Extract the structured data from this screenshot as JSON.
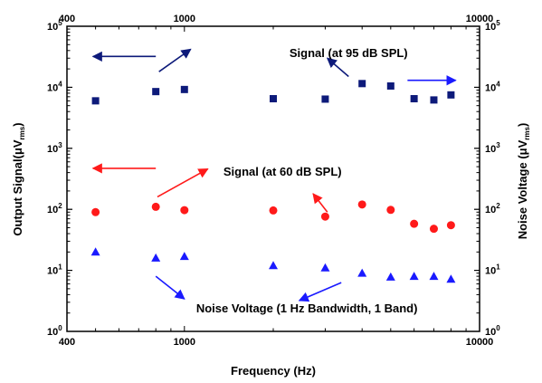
{
  "chart_data": {
    "type": "scatter",
    "xscale": "log",
    "yscale": "log",
    "xlim": [
      400,
      10000
    ],
    "ylim": [
      1,
      100000
    ],
    "x_ticks": [
      {
        "value": 400,
        "label": "400"
      },
      {
        "value": 1000,
        "label": "1000"
      },
      {
        "value": 10000,
        "label": "10000"
      }
    ],
    "y_ticks": [
      {
        "value": 1,
        "label": "10",
        "exp": "0"
      },
      {
        "value": 10,
        "label": "10",
        "exp": "1"
      },
      {
        "value": 100,
        "label": "10",
        "exp": "2"
      },
      {
        "value": 1000,
        "label": "10",
        "exp": "3"
      },
      {
        "value": 10000,
        "label": "10",
        "exp": "4"
      },
      {
        "value": 100000,
        "label": "10",
        "exp": "5"
      }
    ],
    "xlabel": "Frequency (Hz)",
    "ylabel_left": {
      "text": "Output Signal(μV",
      "sub": "rms",
      "tail": ")"
    },
    "ylabel_right": {
      "text": "Noise Voltage (μV",
      "sub": "rms",
      "tail": ")"
    },
    "grid": false,
    "series": [
      {
        "color": "#0d1a7a",
        "marker": "square",
        "x": [
          500,
          800,
          1000,
          2000,
          3000,
          4000,
          5000,
          6000,
          7000,
          8000
        ],
        "y": [
          6000,
          8500,
          9200,
          6500,
          6400,
          11500,
          10500,
          6500,
          6200,
          7500
        ]
      },
      {
        "color": "#ff1a1a",
        "marker": "circle",
        "x": [
          500,
          800,
          1000,
          2000,
          3000,
          4000,
          5000,
          6000,
          7000,
          8000
        ],
        "y": [
          90,
          110,
          97,
          96,
          76,
          120,
          98,
          58,
          48,
          55
        ]
      },
      {
        "color": "#1a1aff",
        "marker": "triangle",
        "x": [
          500,
          800,
          1000,
          2000,
          3000,
          4000,
          5000,
          6000,
          7000,
          8000
        ],
        "y": [
          20,
          16,
          17,
          12,
          11,
          9,
          7.8,
          8,
          8,
          7.2
        ]
      }
    ],
    "annotations": [
      {
        "text": "Signal (at 95 dB SPL)",
        "x": 3600,
        "y": 37000
      },
      {
        "text": "Signal (at 60 dB SPL)",
        "x": 2150,
        "y": 420
      },
      {
        "text": "Noise Voltage (1 Hz Bandwidth, 1 Band)",
        "x": 2600,
        "y": 2.45
      }
    ],
    "arrows": [
      {
        "color": "#0d1a7a",
        "from": [
          800,
          32000
        ],
        "to": [
          490,
          32000
        ]
      },
      {
        "color": "#0d1a7a",
        "from": [
          820,
          18000
        ],
        "to": [
          1050,
          42000
        ]
      },
      {
        "color": "#0d1a7a",
        "from": [
          3600,
          15000
        ],
        "to": [
          3050,
          30000
        ]
      },
      {
        "color": "#ff1a1a",
        "from": [
          800,
          470
        ],
        "to": [
          490,
          470
        ]
      },
      {
        "color": "#ff1a1a",
        "from": [
          810,
          160
        ],
        "to": [
          1200,
          460
        ]
      },
      {
        "color": "#ff1a1a",
        "from": [
          3050,
          90
        ],
        "to": [
          2730,
          180
        ]
      },
      {
        "color": "#1a1aff",
        "from": [
          800,
          8
        ],
        "to": [
          1000,
          3.4
        ]
      },
      {
        "color": "#1a1aff",
        "from": [
          3400,
          6.3
        ],
        "to": [
          2450,
          3.2
        ]
      },
      {
        "color": "#1a1aff",
        "from": [
          5700,
          13000
        ],
        "to": [
          8300,
          13000
        ],
        "log_y_of_value": 13
      }
    ]
  }
}
